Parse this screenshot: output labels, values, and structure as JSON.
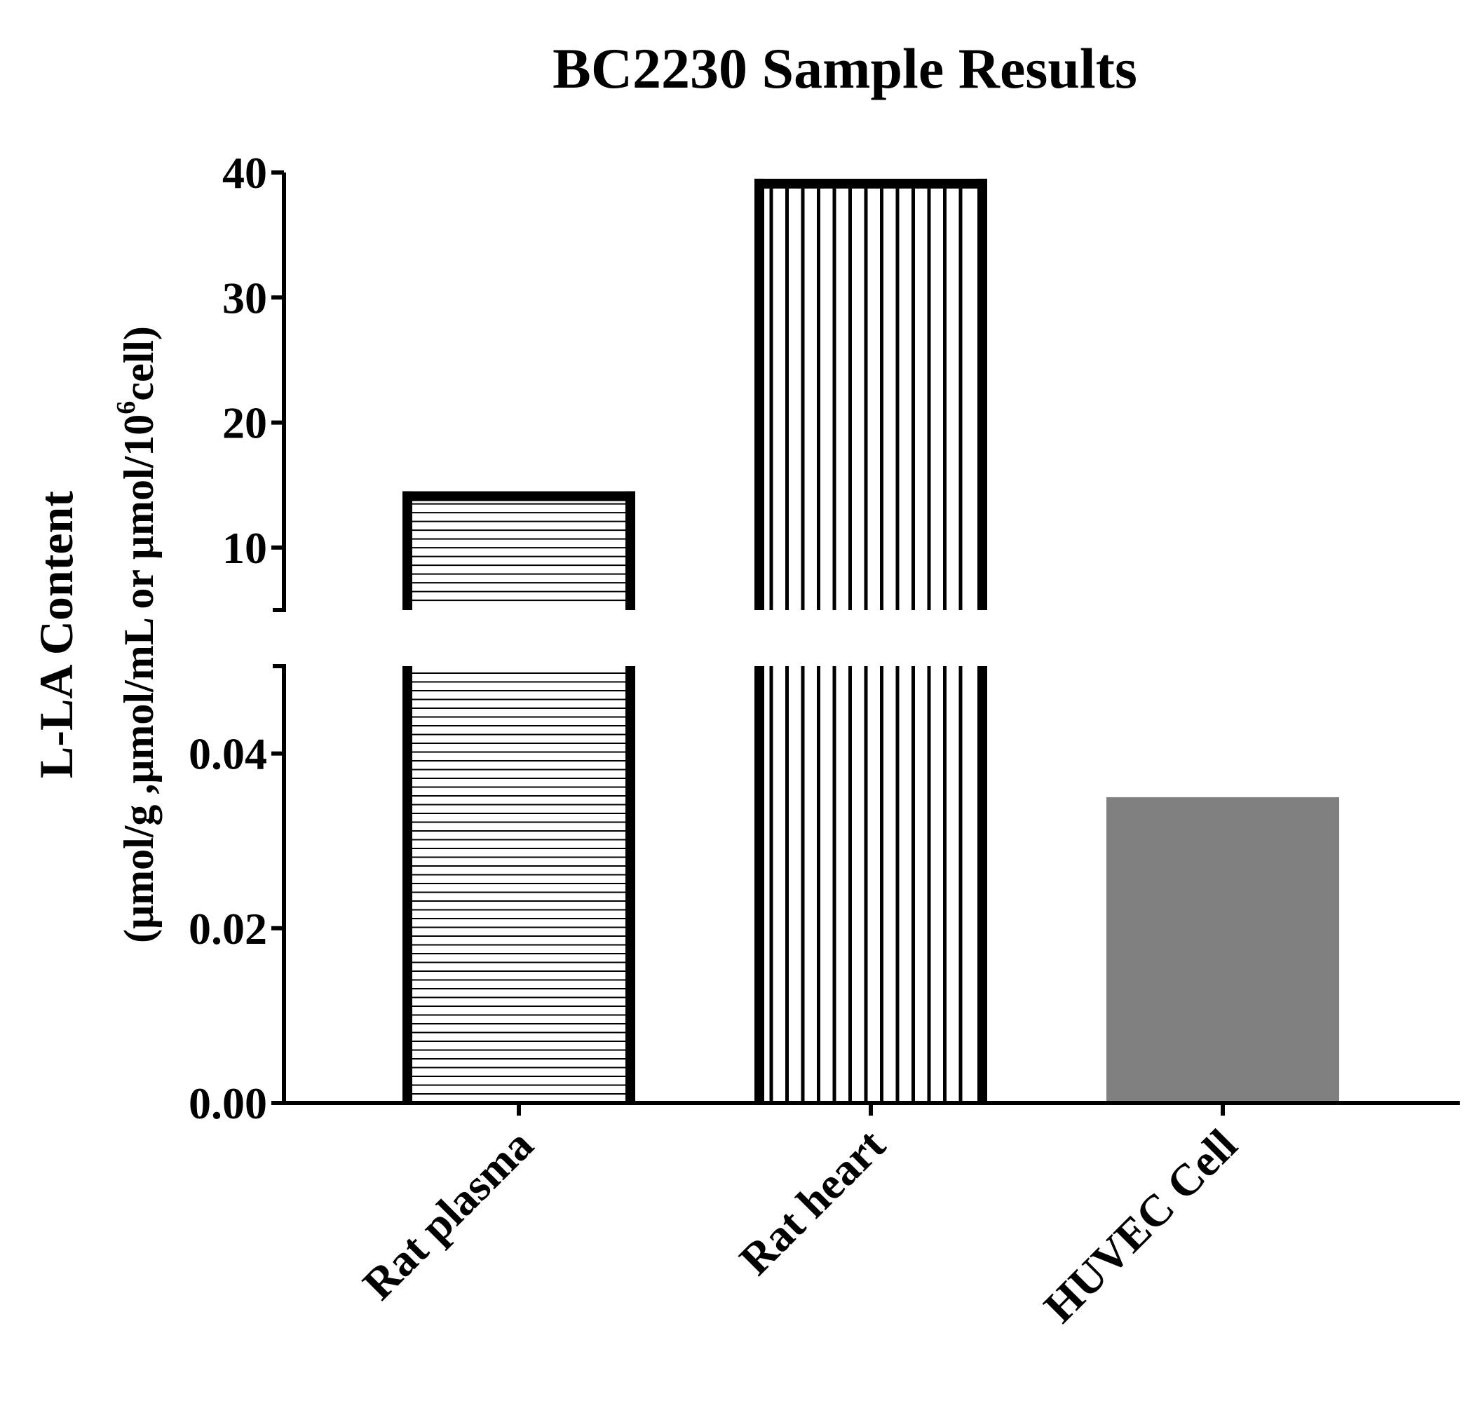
{
  "chart_data": {
    "type": "bar",
    "title": "BC2230 Sample Results",
    "ylabel_line1": "L-LA Content",
    "ylabel_line2_prefix": "(μmol/g ,μmol/mL or μmol/10",
    "ylabel_line2_sup": "6",
    "ylabel_line2_suffix": "cell)",
    "categories": [
      "Rat plasma",
      "Rat heart",
      "HUVEC Cell"
    ],
    "values": [
      14.5,
      39.5,
      0.035
    ],
    "bar_fills": [
      "horizontal-stripes",
      "vertical-stripes",
      "solid"
    ],
    "solid_color": "#808080",
    "axis_color": "#000000",
    "broken_y_axis": true,
    "y_segments": [
      {
        "range": [
          0,
          0.05
        ],
        "ticks": [
          "0.00",
          "0.02",
          "0.04"
        ],
        "tick_values": [
          0,
          0.02,
          0.04
        ]
      },
      {
        "range": [
          5,
          40
        ],
        "ticks": [
          "10",
          "20",
          "30",
          "40"
        ],
        "tick_values": [
          10,
          20,
          30,
          40
        ]
      }
    ],
    "grid": false,
    "legend": "none"
  }
}
